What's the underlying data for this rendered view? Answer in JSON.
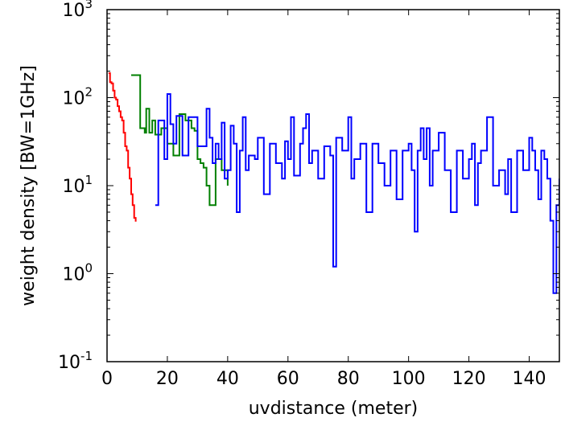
{
  "chart_data": {
    "type": "line",
    "xlabel": "uvdistance (meter)",
    "ylabel": "weight density [BW=1GHz]",
    "xlim": [
      0,
      150
    ],
    "ylim": [
      0.1,
      1000
    ],
    "yscale": "log",
    "grid": false,
    "xticks": [
      0,
      20,
      40,
      60,
      80,
      100,
      120,
      140
    ],
    "yticks": [
      {
        "value": 0.1,
        "base": "10",
        "exp": "-1"
      },
      {
        "value": 1,
        "base": "10",
        "exp": "0"
      },
      {
        "value": 10,
        "base": "10",
        "exp": "1"
      },
      {
        "value": 100,
        "base": "10",
        "exp": "2"
      },
      {
        "value": 1000,
        "base": "10",
        "exp": "3"
      }
    ],
    "series": [
      {
        "color": "#ff0000",
        "x": [
          0.5,
          1,
          1.5,
          2,
          2.5,
          3,
          3.5,
          4,
          4.5,
          5,
          5.5,
          6,
          6.5,
          7,
          7.5,
          8,
          8.5,
          9,
          9.5
        ],
        "y": [
          190,
          150,
          145,
          120,
          100,
          95,
          80,
          70,
          60,
          55,
          40,
          28,
          25,
          16,
          12,
          8,
          6,
          4.3,
          3.9
        ]
      },
      {
        "color": "#008000",
        "x": [
          8,
          11,
          12.5,
          13,
          14,
          15,
          16,
          18,
          20,
          22,
          24,
          26,
          28,
          29,
          30,
          31,
          32,
          33,
          34,
          36,
          38,
          40
        ],
        "y": [
          180,
          45,
          40,
          75,
          40,
          55,
          38,
          45,
          30,
          22,
          65,
          55,
          45,
          42,
          20,
          18,
          16,
          10,
          6,
          20,
          15,
          10
        ]
      },
      {
        "color": "#0000ff",
        "x": [
          16,
          17,
          19,
          20,
          21,
          22,
          23,
          25,
          27,
          30,
          33,
          34,
          35,
          36,
          37,
          38,
          39,
          40,
          41,
          42,
          43,
          44,
          45,
          46,
          47,
          48,
          49,
          50,
          52,
          54,
          56,
          58,
          59,
          60,
          61,
          62,
          64,
          65,
          66,
          67,
          68,
          70,
          72,
          74,
          75,
          76,
          78,
          80,
          81,
          82,
          84,
          86,
          88,
          90,
          92,
          94,
          96,
          98,
          100,
          101,
          102,
          103,
          104,
          105,
          106,
          107,
          108,
          110,
          112,
          114,
          116,
          118,
          120,
          121,
          122,
          123,
          124,
          126,
          128,
          130,
          132,
          133,
          134,
          136,
          138,
          140,
          141,
          142,
          143,
          144,
          145,
          146,
          147,
          148,
          149,
          150
        ],
        "y": [
          6,
          55,
          20,
          110,
          50,
          30,
          62,
          22,
          60,
          28,
          75,
          35,
          18,
          30,
          20,
          52,
          12,
          15,
          48,
          30,
          5,
          25,
          60,
          15,
          22,
          22,
          20,
          35,
          8,
          30,
          18,
          12,
          32,
          20,
          60,
          13,
          30,
          45,
          65,
          18,
          25,
          12,
          28,
          22,
          1.2,
          35,
          25,
          60,
          12,
          20,
          30,
          5,
          30,
          18,
          10,
          25,
          7,
          25,
          30,
          15,
          3,
          25,
          45,
          20,
          45,
          10,
          25,
          40,
          15,
          5,
          25,
          12,
          20,
          30,
          6,
          18,
          25,
          60,
          10,
          15,
          8,
          20,
          5,
          25,
          15,
          35,
          25,
          15,
          7,
          25,
          20,
          12,
          4,
          0.6,
          6,
          12
        ]
      }
    ]
  }
}
